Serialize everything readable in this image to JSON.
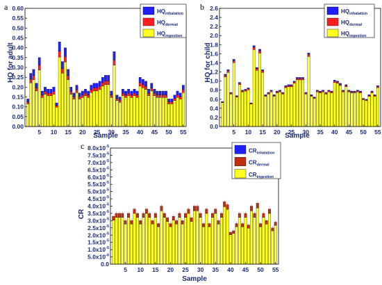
{
  "colors": {
    "inhalation": "#1f1fff",
    "dermal": "#ff1f1f",
    "ingestion": "#ffff20",
    "dermal_c": "#c03010",
    "axis": "#1a2a7a"
  },
  "chart_data": [
    {
      "panel": "a",
      "type": "bar",
      "stacked": true,
      "xlabel": "Sample",
      "ylabel": "HQ for adult",
      "ylim": [
        0,
        0.6
      ],
      "yticks": [
        "0.00",
        "0.05",
        "0.10",
        "0.15",
        "0.20",
        "0.25",
        "0.30",
        "0.35",
        "0.40",
        "0.45",
        "0.50",
        "0.55",
        "0.60"
      ],
      "xticks": [
        5,
        10,
        15,
        20,
        25,
        30,
        35,
        40,
        45,
        50,
        55
      ],
      "legend": [
        {
          "main": "HQ",
          "sub": "inhalation",
          "color": "inhalation"
        },
        {
          "main": "HQ",
          "sub": "dermal",
          "color": "dermal"
        },
        {
          "main": "HQ",
          "sub": "ingestion",
          "color": "ingestion"
        }
      ],
      "legend_position": "top-right",
      "categories": [
        1,
        2,
        3,
        4,
        5,
        6,
        7,
        8,
        9,
        10,
        11,
        12,
        13,
        14,
        15,
        16,
        17,
        18,
        19,
        20,
        21,
        22,
        23,
        24,
        25,
        26,
        27,
        28,
        29,
        30,
        31,
        32,
        33,
        34,
        35,
        36,
        37,
        38,
        39,
        40,
        41,
        42,
        43,
        44,
        45,
        46,
        47,
        48,
        49,
        50,
        51,
        52,
        53,
        54,
        55
      ],
      "totals": [
        0.14,
        0.27,
        0.29,
        0.22,
        0.35,
        0.18,
        0.2,
        0.19,
        0.19,
        0.2,
        0.12,
        0.43,
        0.33,
        0.4,
        0.29,
        0.2,
        0.17,
        0.21,
        0.17,
        0.18,
        0.19,
        0.18,
        0.21,
        0.22,
        0.22,
        0.23,
        0.25,
        0.26,
        0.26,
        0.18,
        0.38,
        0.16,
        0.15,
        0.19,
        0.18,
        0.19,
        0.18,
        0.19,
        0.18,
        0.25,
        0.24,
        0.23,
        0.19,
        0.22,
        0.19,
        0.18,
        0.18,
        0.18,
        0.18,
        0.14,
        0.14,
        0.16,
        0.18,
        0.17,
        0.21
      ],
      "series": [
        {
          "name": "HQinhalation",
          "fraction": 0.11
        },
        {
          "name": "HQdermal",
          "fraction": 0.07
        },
        {
          "name": "HQingestion",
          "fraction": 0.82
        }
      ]
    },
    {
      "panel": "b",
      "type": "bar",
      "stacked": true,
      "xlabel": "Sample",
      "ylabel": "HQ for child",
      "ylim": [
        0,
        2.6
      ],
      "yticks": [
        "0.0",
        "0.2",
        "0.4",
        "0.6",
        "0.8",
        "1.0",
        "1.2",
        "1.4",
        "1.6",
        "1.8",
        "2.0",
        "2.2",
        "2.4",
        "2.6"
      ],
      "xticks": [
        5,
        10,
        15,
        20,
        25,
        30,
        35,
        40,
        45,
        50,
        55
      ],
      "legend": [
        {
          "main": "HQ",
          "sub": "inhalation",
          "color": "inhalation"
        },
        {
          "main": "HQ",
          "sub": "dermal",
          "color": "dermal"
        },
        {
          "main": "HQ",
          "sub": "ingestion",
          "color": "ingestion"
        }
      ],
      "legend_position": "top-right",
      "categories": [
        1,
        2,
        3,
        4,
        5,
        6,
        7,
        8,
        9,
        10,
        11,
        12,
        13,
        14,
        15,
        16,
        17,
        18,
        19,
        20,
        21,
        22,
        23,
        24,
        25,
        26,
        27,
        28,
        29,
        30,
        31,
        32,
        33,
        34,
        35,
        36,
        37,
        38,
        39,
        40,
        41,
        42,
        43,
        44,
        45,
        46,
        47,
        48,
        49,
        50,
        51,
        52,
        53,
        54,
        55
      ],
      "totals": [
        0.55,
        1.15,
        1.25,
        0.75,
        1.48,
        0.68,
        0.97,
        0.8,
        0.82,
        0.85,
        0.52,
        1.78,
        1.3,
        1.7,
        1.25,
        0.7,
        0.75,
        0.8,
        0.7,
        0.78,
        0.8,
        0.75,
        0.9,
        0.92,
        0.92,
        1.0,
        1.08,
        1.08,
        1.08,
        0.75,
        1.62,
        0.7,
        0.65,
        0.8,
        0.78,
        0.8,
        0.75,
        0.8,
        0.78,
        1.02,
        1.0,
        0.95,
        0.8,
        0.92,
        0.8,
        0.78,
        0.78,
        0.8,
        0.78,
        0.62,
        0.6,
        0.7,
        0.78,
        0.7,
        0.9
      ],
      "series": [
        {
          "name": "HQinhalation",
          "fraction": 0.02
        },
        {
          "name": "HQdermal",
          "fraction": 0.03
        },
        {
          "name": "HQingestion",
          "fraction": 0.95
        }
      ]
    },
    {
      "panel": "c",
      "type": "bar",
      "stacked": true,
      "xlabel": "Sample",
      "ylabel": "CR",
      "ylim": [
        0,
        8e-05
      ],
      "yticks": [
        "0.0",
        "5.0x10",
        "1.0x10",
        "1.5x10",
        "2.0x10",
        "2.5x10",
        "3.0x10",
        "3.5x10",
        "4.0x10",
        "4.5x10",
        "5.0x10",
        "5.5x10",
        "6.0x10",
        "6.5x10",
        "7.0x10",
        "7.5x10",
        "8.0x10"
      ],
      "ytick_exponents": [
        "",
        "-6",
        "-5",
        "-5",
        "-5",
        "-5",
        "-5",
        "-5",
        "-5",
        "-5",
        "-5",
        "-5",
        "-5",
        "-5",
        "-5",
        "-5",
        "-5"
      ],
      "xticks": [
        5,
        10,
        15,
        20,
        25,
        30,
        35,
        40,
        45,
        50,
        55
      ],
      "legend": [
        {
          "main": "CR",
          "sub": "inhalation",
          "color": "inhalation"
        },
        {
          "main": "CR",
          "sub": "dermal",
          "color": "dermal_c"
        },
        {
          "main": "CR",
          "sub": "ingestion",
          "color": "ingestion"
        }
      ],
      "legend_position": "top-right",
      "categories": [
        1,
        2,
        3,
        4,
        5,
        6,
        7,
        8,
        9,
        10,
        11,
        12,
        13,
        14,
        15,
        16,
        17,
        18,
        19,
        20,
        21,
        22,
        23,
        24,
        25,
        26,
        27,
        28,
        29,
        30,
        31,
        32,
        33,
        34,
        35,
        36,
        37,
        38,
        39,
        40,
        41,
        42,
        43,
        44,
        45,
        46,
        47,
        48,
        49,
        50,
        51,
        52,
        53,
        54,
        55
      ],
      "totals": [
        3.3e-05,
        3.5e-05,
        3.5e-05,
        3.5e-05,
        3e-05,
        3.5e-05,
        3e-05,
        3.8e-05,
        3.5e-05,
        3e-05,
        3.5e-05,
        3.8e-05,
        3.5e-05,
        3e-05,
        3.5e-05,
        2.8e-05,
        4e-05,
        3.5e-05,
        3.2e-05,
        2.8e-05,
        3.3e-05,
        3e-05,
        3.5e-05,
        3e-05,
        3.5e-05,
        3.8e-05,
        3.2e-05,
        4e-05,
        4e-05,
        3.5e-05,
        2.8e-05,
        3.8e-05,
        2.8e-05,
        3.5e-05,
        3.8e-05,
        3e-05,
        3.5e-05,
        4.3e-05,
        4.1e-05,
        2.2e-05,
        2.3e-05,
        2.8e-05,
        3.5e-05,
        2.8e-05,
        3.5e-05,
        2.7e-05,
        4e-05,
        3.5e-05,
        4.2e-05,
        2.8e-05,
        3.5e-05,
        3e-05,
        3.8e-05,
        2.5e-05,
        2.9e-05
      ],
      "series": [
        {
          "name": "CRinhalation",
          "fraction": 0.0
        },
        {
          "name": "CRdermal",
          "fraction": 0.08
        },
        {
          "name": "CRingestion",
          "fraction": 0.92
        }
      ]
    }
  ]
}
